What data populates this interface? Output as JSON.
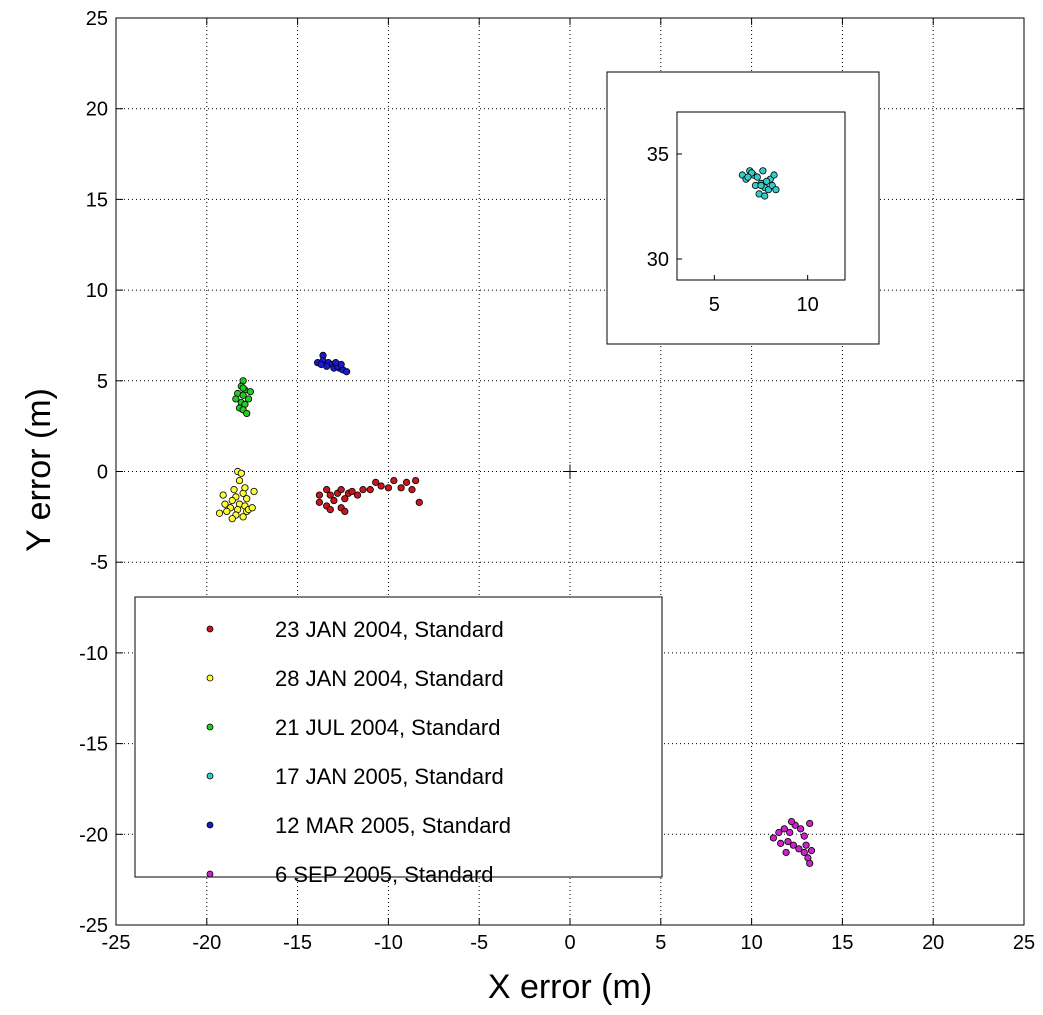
{
  "chart_data": {
    "type": "scatter",
    "title": "",
    "xlabel": "X error (m)",
    "ylabel": "Y error (m)",
    "xlim": [
      -25,
      25
    ],
    "ylim": [
      -25,
      25
    ],
    "xticks": [
      "-25",
      "-20",
      "-15",
      "-10",
      "-5",
      "0",
      "5",
      "10",
      "15",
      "20",
      "25"
    ],
    "yticks": [
      "25",
      "20",
      "15",
      "10",
      "5",
      "0",
      "-5",
      "-10",
      "-15",
      "-20",
      "-25"
    ],
    "grid": true,
    "legend_position": "bottom-left",
    "origin_marker": [
      0,
      0
    ],
    "series": [
      {
        "name": "23 JAN 2004, Standard",
        "color": "#c8161e",
        "points": [
          [
            -13.4,
            -1.0
          ],
          [
            -13.2,
            -1.3
          ],
          [
            -13.0,
            -1.6
          ],
          [
            -12.8,
            -1.2
          ],
          [
            -12.6,
            -1.0
          ],
          [
            -12.4,
            -1.5
          ],
          [
            -12.2,
            -1.2
          ],
          [
            -12.0,
            -1.1
          ],
          [
            -13.4,
            -1.9
          ],
          [
            -13.2,
            -2.1
          ],
          [
            -12.6,
            -2.0
          ],
          [
            -12.4,
            -2.2
          ],
          [
            -13.8,
            -1.3
          ],
          [
            -11.7,
            -1.3
          ],
          [
            -11.4,
            -1.0
          ],
          [
            -11.0,
            -1.0
          ],
          [
            -10.7,
            -0.6
          ],
          [
            -10.4,
            -0.8
          ],
          [
            -10.0,
            -0.9
          ],
          [
            -9.7,
            -0.5
          ],
          [
            -9.3,
            -0.9
          ],
          [
            -9.0,
            -0.6
          ],
          [
            -8.7,
            -1.0
          ],
          [
            -8.5,
            -0.5
          ],
          [
            -8.3,
            -1.7
          ],
          [
            -13.8,
            -1.7
          ]
        ]
      },
      {
        "name": "28 JAN 2004, Standard",
        "color": "#ffff33",
        "points": [
          [
            -18.3,
            0.0
          ],
          [
            -18.1,
            -0.1
          ],
          [
            -18.2,
            -0.5
          ],
          [
            -18.5,
            -1.0
          ],
          [
            -18.0,
            -1.2
          ],
          [
            -18.4,
            -1.4
          ],
          [
            -17.8,
            -1.5
          ],
          [
            -18.6,
            -1.6
          ],
          [
            -18.2,
            -1.8
          ],
          [
            -17.9,
            -1.9
          ],
          [
            -19.0,
            -1.8
          ],
          [
            -18.7,
            -2.0
          ],
          [
            -18.3,
            -2.1
          ],
          [
            -17.8,
            -2.2
          ],
          [
            -19.3,
            -2.3
          ],
          [
            -18.9,
            -2.2
          ],
          [
            -18.4,
            -2.4
          ],
          [
            -18.0,
            -2.5
          ],
          [
            -18.6,
            -2.6
          ],
          [
            -17.7,
            -2.1
          ],
          [
            -17.4,
            -1.1
          ],
          [
            -17.5,
            -2.0
          ],
          [
            -19.1,
            -1.3
          ],
          [
            -17.9,
            -0.9
          ]
        ]
      },
      {
        "name": "21 JUL 2004, Standard",
        "color": "#22cc22",
        "points": [
          [
            -18.0,
            5.0
          ],
          [
            -18.1,
            4.7
          ],
          [
            -17.9,
            4.5
          ],
          [
            -18.3,
            4.3
          ],
          [
            -17.6,
            4.4
          ],
          [
            -18.0,
            4.2
          ],
          [
            -18.4,
            4.0
          ],
          [
            -17.7,
            4.0
          ],
          [
            -18.1,
            3.8
          ],
          [
            -17.9,
            3.7
          ],
          [
            -18.2,
            3.5
          ],
          [
            -18.0,
            3.4
          ],
          [
            -17.8,
            3.2
          ],
          [
            -18.0,
            4.6
          ]
        ]
      },
      {
        "name": "17 JAN 2005, Standard",
        "color": "#33cccc",
        "points": []
      },
      {
        "name": "12 MAR 2005, Standard",
        "color": "#1a1acc",
        "points": [
          [
            -13.6,
            6.4
          ],
          [
            -13.9,
            6.0
          ],
          [
            -13.6,
            6.1
          ],
          [
            -13.3,
            6.0
          ],
          [
            -13.1,
            5.9
          ],
          [
            -12.9,
            5.9
          ],
          [
            -12.7,
            5.7
          ],
          [
            -12.5,
            5.6
          ],
          [
            -12.3,
            5.5
          ],
          [
            -13.4,
            5.8
          ],
          [
            -13.0,
            5.7
          ],
          [
            -12.8,
            5.8
          ],
          [
            -13.7,
            5.9
          ],
          [
            -12.6,
            5.9
          ],
          [
            -12.9,
            6.0
          ]
        ]
      },
      {
        "name": "6 SEP 2005, Standard",
        "color": "#cc22cc",
        "points": [
          [
            11.2,
            -20.2
          ],
          [
            11.5,
            -19.9
          ],
          [
            11.8,
            -19.7
          ],
          [
            12.1,
            -19.9
          ],
          [
            12.4,
            -19.5
          ],
          [
            12.7,
            -19.7
          ],
          [
            12.9,
            -20.1
          ],
          [
            13.2,
            -19.4
          ],
          [
            12.0,
            -20.4
          ],
          [
            12.3,
            -20.6
          ],
          [
            11.6,
            -20.5
          ],
          [
            11.9,
            -21.0
          ],
          [
            12.6,
            -20.8
          ],
          [
            13.0,
            -20.6
          ],
          [
            13.3,
            -20.9
          ],
          [
            13.1,
            -21.3
          ],
          [
            12.9,
            -21.0
          ],
          [
            13.2,
            -21.6
          ],
          [
            12.2,
            -19.3
          ]
        ]
      }
    ],
    "inset": {
      "xlim": [
        3,
        12
      ],
      "ylim": [
        29,
        37
      ],
      "xticks": [
        "5",
        "10"
      ],
      "yticks": [
        "35",
        "30"
      ],
      "series_name": "17 JAN 2005, Standard",
      "color": "#33cccc",
      "points": [
        [
          6.5,
          34.0
        ],
        [
          6.7,
          33.8
        ],
        [
          6.9,
          34.2
        ],
        [
          7.1,
          34.0
        ],
        [
          7.3,
          33.9
        ],
        [
          7.5,
          33.6
        ],
        [
          7.7,
          33.4
        ],
        [
          7.9,
          33.3
        ],
        [
          8.1,
          33.5
        ],
        [
          8.3,
          33.3
        ],
        [
          7.4,
          33.1
        ],
        [
          7.7,
          33.0
        ],
        [
          8.0,
          33.8
        ],
        [
          8.2,
          34.0
        ],
        [
          7.0,
          34.1
        ],
        [
          7.6,
          34.2
        ],
        [
          7.2,
          33.5
        ],
        [
          7.8,
          33.7
        ],
        [
          6.8,
          33.9
        ],
        [
          7.5,
          33.5
        ]
      ]
    }
  }
}
